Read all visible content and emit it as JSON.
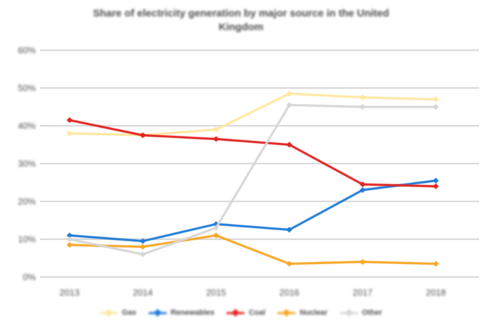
{
  "title": {
    "line1": "Share of electricity generation by major source in the United",
    "line2": "Kingdom"
  },
  "chart_data": {
    "type": "line",
    "x": [
      "2013",
      "2014",
      "2015",
      "2016",
      "2017",
      "2018"
    ],
    "series": [
      {
        "name": "Gas",
        "color": "#ffe79c",
        "values": [
          38,
          37.5,
          39,
          48.5,
          47.5,
          47
        ]
      },
      {
        "name": "Renewables",
        "color": "#1e7ad6",
        "values": [
          11,
          9.5,
          14,
          12.5,
          23,
          25.5
        ]
      },
      {
        "name": "Coal",
        "color": "#e12220",
        "values": [
          41.5,
          37.5,
          36.5,
          35,
          24.5,
          24
        ]
      },
      {
        "name": "Nuclear",
        "color": "#f6a623",
        "values": [
          8.5,
          8,
          11,
          3.5,
          4,
          3.5
        ]
      },
      {
        "name": "Other",
        "color": "#d6d6d6",
        "values": [
          10,
          6,
          13,
          45.5,
          45,
          45
        ]
      }
    ],
    "y_ticks": [
      "0%",
      "10%",
      "20%",
      "30%",
      "40%",
      "50%",
      "60%"
    ],
    "ylim": [
      0,
      60
    ],
    "grid": true,
    "legend_position": "bottom",
    "marker": "diamond"
  },
  "colors": {
    "background": "#ffffff",
    "gridline": "#dcdcdc",
    "text": "#4d4d4d"
  }
}
